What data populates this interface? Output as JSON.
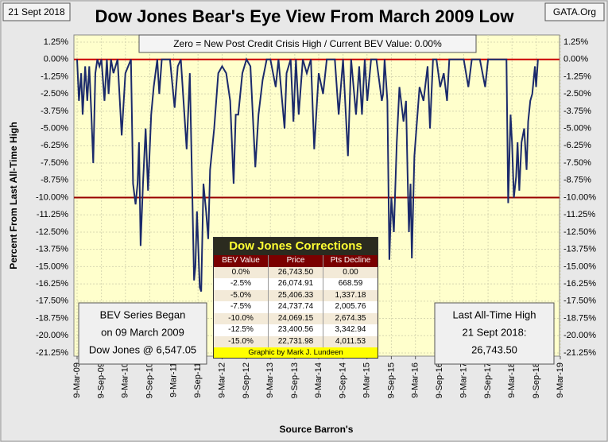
{
  "chart_data": {
    "type": "line",
    "title": "Dow Jones Bear's Eye View From March 2009 Low",
    "date_label": "21 Sept 2018",
    "source_label": "GATA.Org",
    "y_label": "Percent From Last All-Time High",
    "x_label": "Source Barron's",
    "color": "#1b2a6b",
    "grid": true,
    "reference_lines": [
      {
        "value": 0,
        "color": "#cc0000"
      },
      {
        "value": -10,
        "color": "#990000"
      }
    ],
    "ylim": [
      -21.25,
      1.25
    ],
    "yticks": [
      {
        "value": 1.25,
        "label": "1.25%"
      },
      {
        "value": 0,
        "label": "0.00%"
      },
      {
        "value": -1.25,
        "label": "-1.25%"
      },
      {
        "value": -2.5,
        "label": "-2.50%"
      },
      {
        "value": -3.75,
        "label": "-3.75%"
      },
      {
        "value": -5,
        "label": "-5.00%"
      },
      {
        "value": -6.25,
        "label": "-6.25%"
      },
      {
        "value": -7.5,
        "label": "-7.50%"
      },
      {
        "value": -8.75,
        "label": "-8.75%"
      },
      {
        "value": -10,
        "label": "-10.00%"
      },
      {
        "value": -11.25,
        "label": "-11.25%"
      },
      {
        "value": -12.5,
        "label": "-12.50%"
      },
      {
        "value": -13.75,
        "label": "-13.75%"
      },
      {
        "value": -15,
        "label": "-15.00%"
      },
      {
        "value": -16.25,
        "label": "-16.25%"
      },
      {
        "value": -17.5,
        "label": "-17.50%"
      },
      {
        "value": -18.75,
        "label": "-18.75%"
      },
      {
        "value": -20,
        "label": "-20.00%"
      },
      {
        "value": -21.25,
        "label": "-21.25%"
      }
    ],
    "xlim": [
      "2009-03-09",
      "2019-03-09"
    ],
    "xticks": [
      {
        "value": "2009-03-09",
        "label": "9-Mar-09"
      },
      {
        "value": "2009-09-09",
        "label": "9-Sep-09"
      },
      {
        "value": "2010-03-09",
        "label": "9-Mar-10"
      },
      {
        "value": "2010-09-09",
        "label": "9-Sep-10"
      },
      {
        "value": "2011-03-09",
        "label": "9-Mar-11"
      },
      {
        "value": "2011-09-09",
        "label": "9-Sep-11"
      },
      {
        "value": "2012-03-09",
        "label": "9-Mar-12"
      },
      {
        "value": "2012-09-09",
        "label": "9-Sep-12"
      },
      {
        "value": "2013-03-09",
        "label": "9-Mar-13"
      },
      {
        "value": "2013-09-09",
        "label": "9-Sep-13"
      },
      {
        "value": "2014-03-09",
        "label": "9-Mar-14"
      },
      {
        "value": "2014-09-09",
        "label": "9-Sep-14"
      },
      {
        "value": "2015-03-09",
        "label": "9-Mar-15"
      },
      {
        "value": "2015-09-09",
        "label": "9-Sep-15"
      },
      {
        "value": "2016-03-09",
        "label": "9-Mar-16"
      },
      {
        "value": "2016-09-09",
        "label": "9-Sep-16"
      },
      {
        "value": "2017-03-09",
        "label": "9-Mar-17"
      },
      {
        "value": "2017-09-09",
        "label": "9-Sep-17"
      },
      {
        "value": "2018-03-09",
        "label": "9-Mar-18"
      },
      {
        "value": "2018-09-09",
        "label": "9-Sep-18"
      },
      {
        "value": "2019-03-09",
        "label": "9-Mar-19"
      }
    ],
    "x": [
      "2009-03-09",
      "2009-03-23",
      "2009-04-09",
      "2009-04-20",
      "2009-05-09",
      "2009-05-25",
      "2009-06-09",
      "2009-06-25",
      "2009-07-09",
      "2009-07-25",
      "2009-08-09",
      "2009-08-25",
      "2009-09-09",
      "2009-10-02",
      "2009-10-20",
      "2009-11-02",
      "2009-11-20",
      "2009-12-09",
      "2010-01-09",
      "2010-02-09",
      "2010-03-09",
      "2010-04-20",
      "2010-05-06",
      "2010-05-25",
      "2010-06-09",
      "2010-06-20",
      "2010-07-02",
      "2010-07-20",
      "2010-08-09",
      "2010-08-27",
      "2010-09-20",
      "2010-10-09",
      "2010-11-05",
      "2010-11-20",
      "2010-12-09",
      "2011-01-09",
      "2011-02-09",
      "2011-03-16",
      "2011-04-09",
      "2011-05-02",
      "2011-06-15",
      "2011-07-09",
      "2011-08-10",
      "2011-08-20",
      "2011-09-01",
      "2011-09-22",
      "2011-10-03",
      "2011-10-20",
      "2011-11-09",
      "2011-11-25",
      "2011-12-09",
      "2012-01-09",
      "2012-02-09",
      "2012-03-09",
      "2012-04-09",
      "2012-05-09",
      "2012-06-04",
      "2012-06-20",
      "2012-07-09",
      "2012-08-09",
      "2012-09-09",
      "2012-10-09",
      "2012-11-15",
      "2012-12-09",
      "2013-01-09",
      "2013-02-09",
      "2013-03-09",
      "2013-04-18",
      "2013-05-09",
      "2013-06-24",
      "2013-07-09",
      "2013-08-09",
      "2013-08-30",
      "2013-09-18",
      "2013-10-09",
      "2013-11-09",
      "2013-12-09",
      "2014-01-09",
      "2014-02-03",
      "2014-03-09",
      "2014-04-11",
      "2014-05-09",
      "2014-06-09",
      "2014-07-09",
      "2014-08-07",
      "2014-09-09",
      "2014-10-16",
      "2014-11-09",
      "2014-12-16",
      "2015-01-09",
      "2015-01-30",
      "2015-02-20",
      "2015-03-11",
      "2015-04-09",
      "2015-05-19",
      "2015-06-29",
      "2015-07-09",
      "2015-07-20",
      "2015-08-10",
      "2015-08-25",
      "2015-09-09",
      "2015-09-28",
      "2015-10-20",
      "2015-11-09",
      "2015-12-10",
      "2015-12-29",
      "2016-01-09",
      "2016-01-20",
      "2016-02-01",
      "2016-02-11",
      "2016-03-01",
      "2016-04-09",
      "2016-05-09",
      "2016-06-09",
      "2016-06-27",
      "2016-07-20",
      "2016-08-15",
      "2016-09-12",
      "2016-10-09",
      "2016-11-03",
      "2016-11-20",
      "2016-12-09",
      "2017-01-09",
      "2017-02-09",
      "2017-03-09",
      "2017-04-13",
      "2017-05-09",
      "2017-06-09",
      "2017-07-09",
      "2017-08-18",
      "2017-09-09",
      "2017-10-09",
      "2017-11-09",
      "2017-12-09",
      "2018-01-26",
      "2018-02-08",
      "2018-02-26",
      "2018-03-09",
      "2018-03-23",
      "2018-04-09",
      "2018-04-20",
      "2018-05-03",
      "2018-05-20",
      "2018-06-09",
      "2018-06-27",
      "2018-07-09",
      "2018-07-25",
      "2018-08-09",
      "2018-08-29",
      "2018-09-07",
      "2018-09-21"
    ],
    "values": [
      0,
      -3,
      -1,
      -4,
      -0.5,
      -3,
      -0.5,
      -4,
      -7.5,
      -1,
      0,
      -0.5,
      0,
      -3,
      0,
      -2.5,
      0,
      -1,
      0,
      -5.5,
      -1,
      0,
      -9,
      -10.5,
      -9,
      -6,
      -13.5,
      -9,
      -5,
      -9.5,
      -4,
      -2,
      0,
      -2.5,
      0,
      0,
      0,
      -3.5,
      -0.5,
      0,
      -6.5,
      -1,
      -16,
      -15,
      -11,
      -16.5,
      -16.8,
      -9,
      -11,
      -13,
      -8,
      -5,
      -1,
      -0.5,
      -1,
      -3,
      -9,
      -4,
      -4,
      -1,
      0,
      -0.5,
      -7.8,
      -4,
      -1.5,
      0,
      0,
      -2,
      0,
      -5,
      -1,
      0,
      -4.5,
      0,
      -4,
      0,
      -1,
      0,
      -6.5,
      -1,
      -2.5,
      0,
      0,
      0,
      -4,
      0,
      -7,
      0,
      -4,
      -0.5,
      -4,
      0,
      -3,
      0,
      0,
      -3,
      -2.5,
      0,
      -3,
      -14.5,
      -10,
      -12.5,
      -6,
      -2,
      -4.5,
      -3,
      -8,
      -12.5,
      -9,
      -14.4,
      -7,
      -2,
      -3,
      -0.5,
      -5,
      0,
      0,
      -2,
      -1,
      -3,
      0,
      0,
      0,
      0,
      0,
      -2,
      0,
      0,
      0,
      -2,
      0,
      0,
      0,
      0,
      0,
      -10.4,
      -4,
      -6,
      -10,
      -8.5,
      -6,
      -9.5,
      -6,
      -5,
      -8,
      -4.5,
      -3,
      -2.5,
      -0.5,
      -2,
      0
    ],
    "annotations": {
      "top": "Zero = New Post Credit Crisis High / Current BEV Value:  0.00%",
      "left": [
        "BEV Series Began",
        "on 09 March 2009",
        "Dow Jones @ 6,547.05"
      ],
      "right": [
        "Last All-Time High",
        "21 Sept 2018:",
        "26,743.50"
      ]
    },
    "table": {
      "title": "Dow Jones Corrections",
      "headers": [
        "BEV Value",
        "Price",
        "Pts Decline"
      ],
      "rows": [
        [
          "0.0%",
          "26,743.50",
          "0.00"
        ],
        [
          "-2.5%",
          "26,074.91",
          "668.59"
        ],
        [
          "-5.0%",
          "25,406.33",
          "1,337.18"
        ],
        [
          "-7.5%",
          "24,737.74",
          "2,005.76"
        ],
        [
          "-10.0%",
          "24,069.15",
          "2,674.35"
        ],
        [
          "-12.5%",
          "23,400.56",
          "3,342.94"
        ],
        [
          "-15.0%",
          "22,731.98",
          "4,011.53"
        ]
      ],
      "footer": "Graphic by Mark J. Lundeen"
    }
  }
}
